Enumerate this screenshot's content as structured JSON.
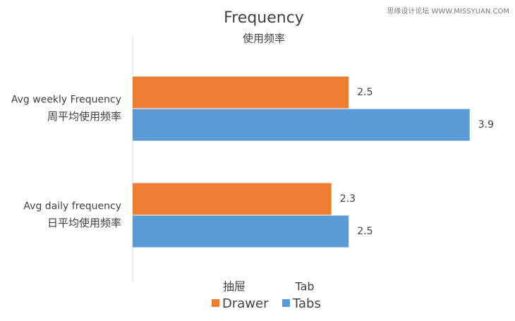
{
  "chart_data": {
    "type": "bar",
    "orientation": "horizontal",
    "title": "Frequency",
    "subtitle": "使用频率",
    "watermark": "思缘设计论坛 WWW.MISSYUAN.COM",
    "categories": [
      "Avg weekly Frequency",
      "Avg daily frequency"
    ],
    "categories_zh": [
      "周平均使用频率",
      "日平均使用频率"
    ],
    "series": [
      {
        "name": "Drawer",
        "note": "抽屉",
        "color": "#ed7d31",
        "values": [
          2.5,
          2.3
        ]
      },
      {
        "name": "Tabs",
        "note": "Tab",
        "color": "#5b9bd5",
        "values": [
          3.9,
          2.5
        ]
      }
    ],
    "xlim": [
      0,
      4
    ],
    "grid": false,
    "legend": "bottom"
  }
}
